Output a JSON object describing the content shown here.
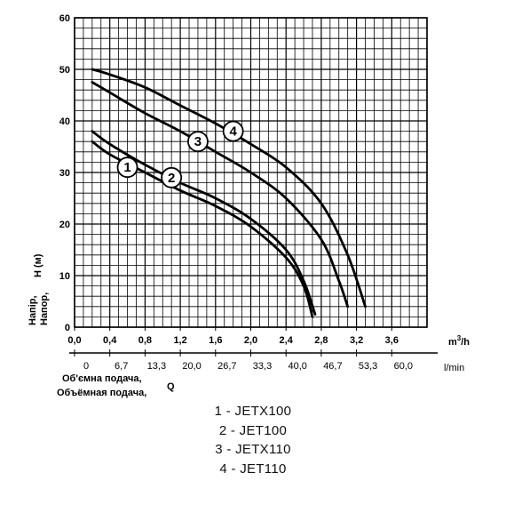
{
  "chart_data": {
    "type": "line",
    "x_axis_top": {
      "unit": "m³/h",
      "ticks": [
        "0,0",
        "0,4",
        "0,8",
        "1,2",
        "1,6",
        "2,0",
        "2,4",
        "2,8",
        "3,2",
        "3,6"
      ],
      "range": [
        0,
        4.0
      ]
    },
    "x_axis_bottom": {
      "unit": "l/min",
      "ticks": [
        "0",
        "6,7",
        "13,3",
        "20,0",
        "26,7",
        "33,3",
        "40,0",
        "46,7",
        "53,3",
        "60,0"
      ]
    },
    "x_label_lines": [
      "Об'ємна подача,",
      "Объёмная подача,"
    ],
    "x_label_symbol": "Q",
    "y_axis": {
      "ticks": [
        "0",
        "10",
        "20",
        "30",
        "40",
        "50",
        "60"
      ],
      "range": [
        0,
        60
      ],
      "label_lines": [
        "Напір,",
        "Напор,"
      ],
      "label_unit": "H (м)"
    },
    "grid": true,
    "series": [
      {
        "marker": "1",
        "label_at": [
          0.6,
          31.0
        ],
        "points": [
          [
            0.2,
            36
          ],
          [
            0.4,
            33.5
          ],
          [
            0.8,
            30
          ],
          [
            1.2,
            26.5
          ],
          [
            1.6,
            23.5
          ],
          [
            2.0,
            19.5
          ],
          [
            2.4,
            13.5
          ],
          [
            2.6,
            8
          ],
          [
            2.7,
            2
          ]
        ]
      },
      {
        "marker": "2",
        "label_at": [
          1.1,
          29.0
        ],
        "points": [
          [
            0.2,
            38
          ],
          [
            0.4,
            35.5
          ],
          [
            0.8,
            31.5
          ],
          [
            1.2,
            28
          ],
          [
            1.6,
            25
          ],
          [
            2.0,
            21
          ],
          [
            2.4,
            15
          ],
          [
            2.6,
            9
          ],
          [
            2.73,
            2.5
          ]
        ]
      },
      {
        "marker": "3",
        "label_at": [
          1.4,
          36.0
        ],
        "points": [
          [
            0.2,
            47.5
          ],
          [
            0.4,
            45.5
          ],
          [
            0.8,
            41.5
          ],
          [
            1.2,
            38
          ],
          [
            1.6,
            34
          ],
          [
            2.0,
            30
          ],
          [
            2.4,
            25
          ],
          [
            2.8,
            17
          ],
          [
            3.0,
            9
          ],
          [
            3.1,
            4
          ]
        ]
      },
      {
        "marker": "4",
        "label_at": [
          1.8,
          38.0
        ],
        "points": [
          [
            0.2,
            50
          ],
          [
            0.4,
            49
          ],
          [
            0.8,
            46.5
          ],
          [
            1.2,
            43
          ],
          [
            1.6,
            39.5
          ],
          [
            2.0,
            35.5
          ],
          [
            2.4,
            31
          ],
          [
            2.8,
            24
          ],
          [
            3.1,
            14
          ],
          [
            3.3,
            4
          ]
        ]
      }
    ]
  },
  "legend": [
    "1 - JETX100",
    "2 - JET100",
    "3 - JETX110",
    "4 - JET110"
  ]
}
